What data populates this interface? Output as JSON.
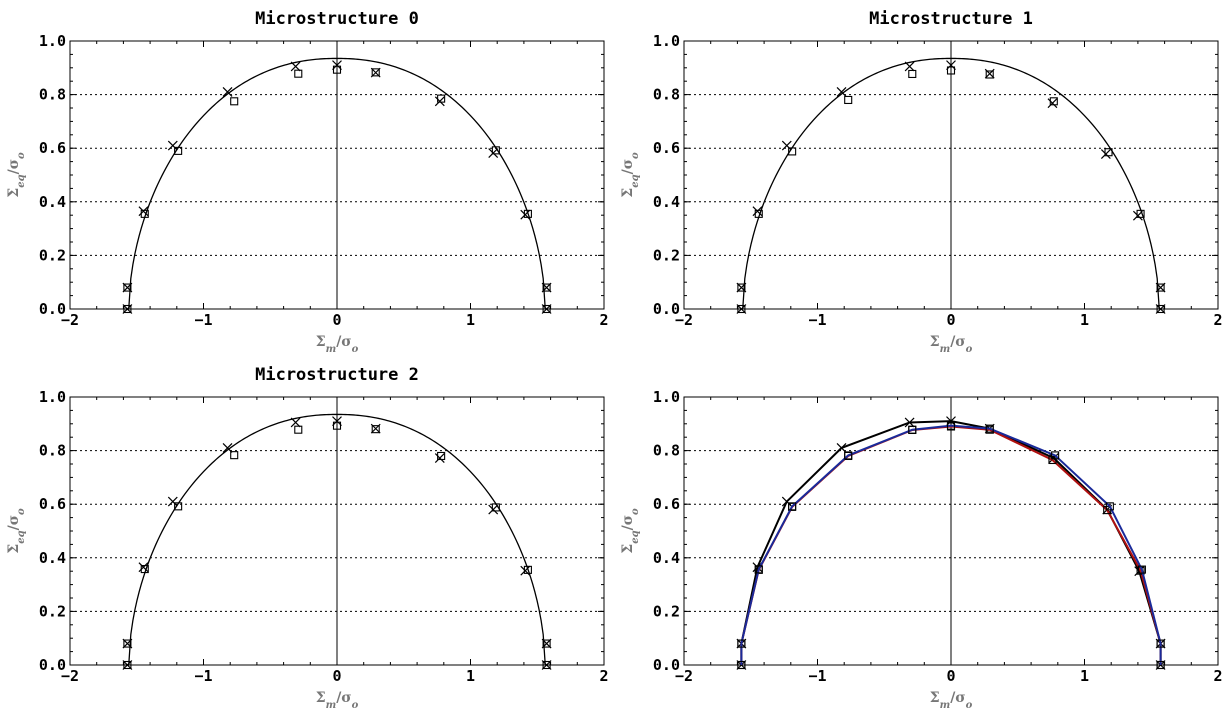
{
  "chart_data": [
    {
      "type": "scatter",
      "title": "Microstructure 0",
      "xlabel": "Σm/σo",
      "ylabel": "Σeq/σo",
      "xlim": [
        -2,
        2
      ],
      "ylim": [
        0,
        1
      ],
      "x_ticks": [
        "−2",
        "−1",
        "0",
        "1",
        "2"
      ],
      "y_ticks": [
        "0.0",
        "0.2",
        "0.4",
        "0.6",
        "0.8",
        "1.0"
      ],
      "grid": "horizontal dotted",
      "curve": {
        "type": "yield-surface",
        "x_extent": 1.56,
        "y_peak": 0.935
      },
      "series": [
        {
          "marker": "cross",
          "points": [
            [
              -1.57,
              0.0
            ],
            [
              -1.57,
              0.08
            ],
            [
              -1.45,
              0.365
            ],
            [
              -1.23,
              0.61
            ],
            [
              -0.82,
              0.81
            ],
            [
              -0.31,
              0.905
            ],
            [
              0.0,
              0.91
            ],
            [
              0.29,
              0.882
            ],
            [
              0.77,
              0.775
            ],
            [
              1.17,
              0.582
            ],
            [
              1.41,
              0.352
            ],
            [
              1.57,
              0.08
            ],
            [
              1.57,
              0.0
            ]
          ]
        },
        {
          "marker": "square",
          "points": [
            [
              -1.57,
              0.0
            ],
            [
              -1.57,
              0.08
            ],
            [
              -1.44,
              0.355
            ],
            [
              -1.19,
              0.59
            ],
            [
              -0.77,
              0.775
            ],
            [
              -0.29,
              0.878
            ],
            [
              0.0,
              0.893
            ],
            [
              0.29,
              0.883
            ],
            [
              0.78,
              0.785
            ],
            [
              1.19,
              0.592
            ],
            [
              1.43,
              0.355
            ],
            [
              1.57,
              0.08
            ],
            [
              1.57,
              0.0
            ]
          ]
        }
      ]
    },
    {
      "type": "scatter",
      "title": "Microstructure 1",
      "xlabel": "Σm/σo",
      "ylabel": "Σeq/σo",
      "xlim": [
        -2,
        2
      ],
      "ylim": [
        0,
        1
      ],
      "x_ticks": [
        "−2",
        "−1",
        "0",
        "1",
        "2"
      ],
      "y_ticks": [
        "0.0",
        "0.2",
        "0.4",
        "0.6",
        "0.8",
        "1.0"
      ],
      "grid": "horizontal dotted",
      "curve": {
        "type": "yield-surface",
        "x_extent": 1.56,
        "y_peak": 0.935
      },
      "series": [
        {
          "marker": "cross",
          "points": [
            [
              -1.57,
              0.0
            ],
            [
              -1.57,
              0.08
            ],
            [
              -1.45,
              0.365
            ],
            [
              -1.23,
              0.61
            ],
            [
              -0.82,
              0.81
            ],
            [
              -0.31,
              0.905
            ],
            [
              0.0,
              0.91
            ],
            [
              0.29,
              0.878
            ],
            [
              0.76,
              0.768
            ],
            [
              1.16,
              0.578
            ],
            [
              1.4,
              0.348
            ],
            [
              1.57,
              0.08
            ],
            [
              1.57,
              0.0
            ]
          ]
        },
        {
          "marker": "square",
          "points": [
            [
              -1.57,
              0.0
            ],
            [
              -1.57,
              0.08
            ],
            [
              -1.44,
              0.355
            ],
            [
              -1.19,
              0.588
            ],
            [
              -0.77,
              0.78
            ],
            [
              -0.29,
              0.877
            ],
            [
              0.0,
              0.89
            ],
            [
              0.29,
              0.875
            ],
            [
              0.77,
              0.775
            ],
            [
              1.18,
              0.585
            ],
            [
              1.42,
              0.355
            ],
            [
              1.57,
              0.08
            ],
            [
              1.57,
              0.0
            ]
          ]
        }
      ]
    },
    {
      "type": "scatter",
      "title": "Microstructure 2",
      "xlabel": "Σm/σo",
      "ylabel": "Σeq/σo",
      "xlim": [
        -2,
        2
      ],
      "ylim": [
        0,
        1
      ],
      "x_ticks": [
        "−2",
        "−1",
        "0",
        "1",
        "2"
      ],
      "y_ticks": [
        "0.0",
        "0.2",
        "0.4",
        "0.6",
        "0.8",
        "1.0"
      ],
      "grid": "horizontal dotted",
      "curve": {
        "type": "yield-surface",
        "x_extent": 1.56,
        "y_peak": 0.935
      },
      "series": [
        {
          "marker": "cross",
          "points": [
            [
              -1.57,
              0.0
            ],
            [
              -1.57,
              0.08
            ],
            [
              -1.45,
              0.365
            ],
            [
              -1.23,
              0.61
            ],
            [
              -0.82,
              0.81
            ],
            [
              -0.31,
              0.905
            ],
            [
              0.0,
              0.91
            ],
            [
              0.29,
              0.882
            ],
            [
              0.77,
              0.772
            ],
            [
              1.17,
              0.58
            ],
            [
              1.41,
              0.352
            ],
            [
              1.57,
              0.08
            ],
            [
              1.57,
              0.0
            ]
          ]
        },
        {
          "marker": "square",
          "points": [
            [
              -1.57,
              0.0
            ],
            [
              -1.57,
              0.08
            ],
            [
              -1.44,
              0.358
            ],
            [
              -1.19,
              0.592
            ],
            [
              -0.77,
              0.783
            ],
            [
              -0.29,
              0.878
            ],
            [
              0.0,
              0.893
            ],
            [
              0.29,
              0.88
            ],
            [
              0.78,
              0.78
            ],
            [
              1.19,
              0.588
            ],
            [
              1.43,
              0.355
            ],
            [
              1.57,
              0.08
            ],
            [
              1.57,
              0.0
            ]
          ]
        }
      ]
    },
    {
      "type": "line",
      "title": "",
      "xlabel": "Σm/σo",
      "ylabel": "Σeq/σo",
      "xlim": [
        -2,
        2
      ],
      "ylim": [
        0,
        1
      ],
      "x_ticks": [
        "−2",
        "−1",
        "0",
        "1",
        "2"
      ],
      "y_ticks": [
        "0.0",
        "0.2",
        "0.4",
        "0.6",
        "0.8",
        "1.0"
      ],
      "grid": "horizontal dotted",
      "series": [
        {
          "color": "#000000",
          "marker": "cross",
          "points": [
            [
              -1.57,
              0.0
            ],
            [
              -1.57,
              0.08
            ],
            [
              -1.45,
              0.365
            ],
            [
              -1.23,
              0.61
            ],
            [
              -0.82,
              0.81
            ],
            [
              -0.31,
              0.905
            ],
            [
              0.0,
              0.91
            ],
            [
              0.29,
              0.882
            ],
            [
              0.77,
              0.772
            ],
            [
              1.17,
              0.58
            ],
            [
              1.41,
              0.35
            ],
            [
              1.57,
              0.08
            ],
            [
              1.57,
              0.0
            ]
          ]
        },
        {
          "color": "#b01010",
          "marker": "square",
          "points": [
            [
              -1.57,
              0.0
            ],
            [
              -1.57,
              0.08
            ],
            [
              -1.44,
              0.355
            ],
            [
              -1.19,
              0.59
            ],
            [
              -0.77,
              0.78
            ],
            [
              -0.29,
              0.877
            ],
            [
              0.0,
              0.89
            ],
            [
              0.29,
              0.878
            ],
            [
              0.76,
              0.765
            ],
            [
              1.17,
              0.578
            ],
            [
              1.42,
              0.352
            ],
            [
              1.57,
              0.08
            ],
            [
              1.57,
              0.0
            ]
          ]
        },
        {
          "color": "#1a2a9a",
          "marker": "square",
          "points": [
            [
              -1.57,
              0.0
            ],
            [
              -1.57,
              0.08
            ],
            [
              -1.44,
              0.357
            ],
            [
              -1.19,
              0.592
            ],
            [
              -0.77,
              0.782
            ],
            [
              -0.29,
              0.878
            ],
            [
              0.0,
              0.893
            ],
            [
              0.29,
              0.882
            ],
            [
              0.78,
              0.782
            ],
            [
              1.19,
              0.592
            ],
            [
              1.43,
              0.356
            ],
            [
              1.57,
              0.08
            ],
            [
              1.57,
              0.0
            ]
          ]
        }
      ]
    }
  ]
}
